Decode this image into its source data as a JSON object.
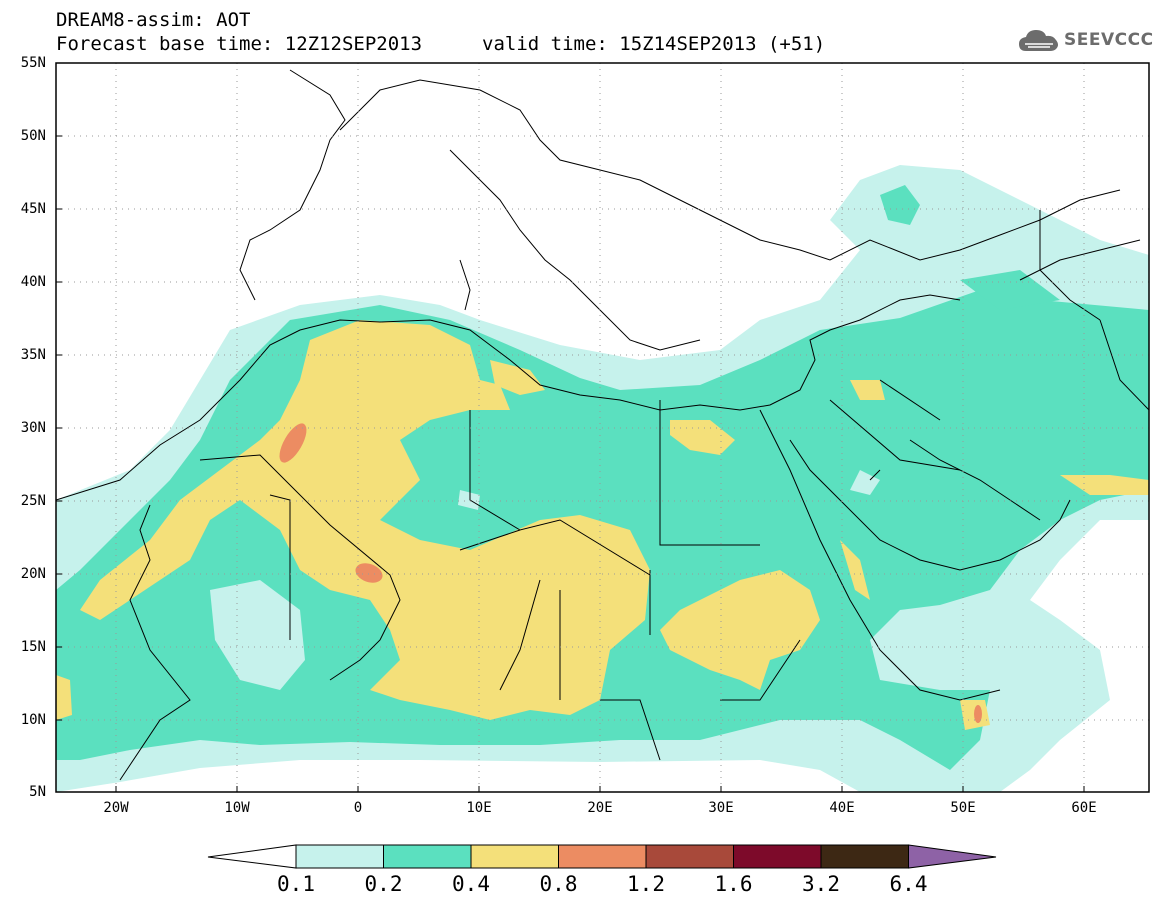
{
  "header": {
    "title_line1": "DREAM8-assim: AOT",
    "title_line2": "Forecast base time: 12Z12SEP2013",
    "valid_time": "valid time: 15Z14SEP2013 (+51)",
    "logo_text": "SEEVCCC"
  },
  "map": {
    "lat_labels": [
      "55N",
      "50N",
      "45N",
      "40N",
      "35N",
      "30N",
      "25N",
      "20N",
      "15N",
      "10N",
      "5N"
    ],
    "lon_labels": [
      "20W",
      "10W",
      "0",
      "10E",
      "20E",
      "30E",
      "40E",
      "50E",
      "60E"
    ],
    "lon_range": [
      -25,
      65
    ],
    "lat_range": [
      5,
      55
    ]
  },
  "colorbar": {
    "labels": [
      "0.1",
      "0.2",
      "0.4",
      "0.8",
      "1.2",
      "1.6",
      "3.2",
      "6.4"
    ],
    "colors": [
      "#ffffff",
      "#c6f2ec",
      "#5be0bf",
      "#f4e07a",
      "#ec8c62",
      "#a8493a",
      "#7d0a2a",
      "#3d2814",
      "#8e62a6"
    ]
  }
}
